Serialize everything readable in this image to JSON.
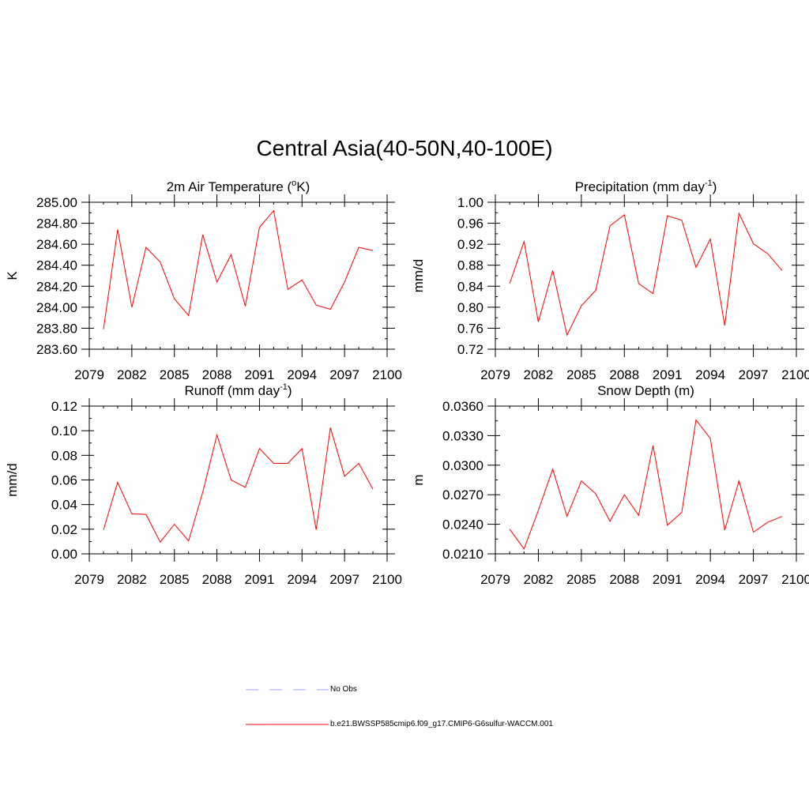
{
  "title": "Central Asia(40-50N,40-100E)",
  "colors": {
    "series": "#ff0000",
    "obs": "#a0a0ff",
    "axis": "#000000"
  },
  "legend": {
    "obs_label": "No Obs",
    "model_label": "b.e21.BWSSP585cmip6.f09_g17.CMIP6-G6sulfur-WACCM.001"
  },
  "chart_data": [
    {
      "type": "line",
      "title": "2m Air Temperature (",
      "title_sup": "o",
      "title_post": "K)",
      "ylabel": "K",
      "xlim": [
        2079,
        2100
      ],
      "ylim": [
        283.6,
        285.0
      ],
      "yticks": [
        "283.60",
        "283.80",
        "284.00",
        "284.20",
        "284.40",
        "284.60",
        "284.80",
        "285.00"
      ],
      "xticks": [
        "2079",
        "2082",
        "2085",
        "2088",
        "2091",
        "2094",
        "2097",
        "2100"
      ],
      "x": [
        2080,
        2081,
        2082,
        2083,
        2084,
        2085,
        2086,
        2087,
        2088,
        2089,
        2090,
        2091,
        2092,
        2093,
        2094,
        2095,
        2096,
        2097,
        2098,
        2099
      ],
      "values": [
        283.79,
        284.74,
        284.0,
        284.57,
        284.43,
        284.08,
        283.92,
        284.69,
        284.24,
        284.5,
        284.01,
        284.76,
        284.92,
        284.17,
        284.26,
        284.02,
        283.98,
        284.24,
        284.57,
        284.54
      ]
    },
    {
      "type": "line",
      "title": "Precipitation (mm day",
      "title_sup": "-1",
      "title_post": ")",
      "ylabel": "mm/d",
      "xlim": [
        2079,
        2100
      ],
      "ylim": [
        0.72,
        1.0
      ],
      "yticks": [
        "0.72",
        "0.76",
        "0.80",
        "0.84",
        "0.88",
        "0.92",
        "0.96",
        "1.00"
      ],
      "xticks": [
        "2079",
        "2082",
        "2085",
        "2088",
        "2091",
        "2094",
        "2097",
        "2100"
      ],
      "x": [
        2080,
        2081,
        2082,
        2083,
        2084,
        2085,
        2086,
        2087,
        2088,
        2089,
        2090,
        2091,
        2092,
        2093,
        2094,
        2095,
        2096,
        2097,
        2098,
        2099
      ],
      "values": [
        0.845,
        0.925,
        0.772,
        0.87,
        0.747,
        0.803,
        0.832,
        0.955,
        0.976,
        0.845,
        0.826,
        0.974,
        0.966,
        0.876,
        0.93,
        0.765,
        0.979,
        0.921,
        0.902,
        0.87
      ]
    },
    {
      "type": "line",
      "title": "Runoff (mm day",
      "title_sup": "-1",
      "title_post": ")",
      "ylabel": "mm/d",
      "xlim": [
        2079,
        2100
      ],
      "ylim": [
        0.0,
        0.12
      ],
      "yticks": [
        "0.00",
        "0.02",
        "0.04",
        "0.06",
        "0.08",
        "0.10",
        "0.12"
      ],
      "xticks": [
        "2079",
        "2082",
        "2085",
        "2088",
        "2091",
        "2094",
        "2097",
        "2100"
      ],
      "x": [
        2080,
        2081,
        2082,
        2083,
        2084,
        2085,
        2086,
        2087,
        2088,
        2089,
        2090,
        2091,
        2092,
        2093,
        2094,
        2095,
        2096,
        2097,
        2098,
        2099
      ],
      "values": [
        0.0195,
        0.058,
        0.0325,
        0.032,
        0.0095,
        0.024,
        0.0105,
        0.05,
        0.0965,
        0.06,
        0.054,
        0.0855,
        0.0735,
        0.0735,
        0.0855,
        0.0195,
        0.1025,
        0.063,
        0.0735,
        0.0525
      ]
    },
    {
      "type": "line",
      "title": "Snow Depth (m)",
      "title_sup": "",
      "title_post": "",
      "ylabel": "m",
      "xlim": [
        2079,
        2100
      ],
      "ylim": [
        0.021,
        0.036
      ],
      "yticks": [
        "0.0210",
        "0.0240",
        "0.0270",
        "0.0300",
        "0.0330",
        "0.0360"
      ],
      "xticks": [
        "2079",
        "2082",
        "2085",
        "2088",
        "2091",
        "2094",
        "2097",
        "2100"
      ],
      "x": [
        2080,
        2081,
        2082,
        2083,
        2084,
        2085,
        2086,
        2087,
        2088,
        2089,
        2090,
        2091,
        2092,
        2093,
        2094,
        2095,
        2096,
        2097,
        2098,
        2099
      ],
      "values": [
        0.0235,
        0.0215,
        0.0254,
        0.0296,
        0.0248,
        0.0284,
        0.0271,
        0.0243,
        0.027,
        0.0249,
        0.032,
        0.0239,
        0.0252,
        0.0346,
        0.0327,
        0.0234,
        0.0284,
        0.0232,
        0.0242,
        0.0248
      ]
    }
  ]
}
